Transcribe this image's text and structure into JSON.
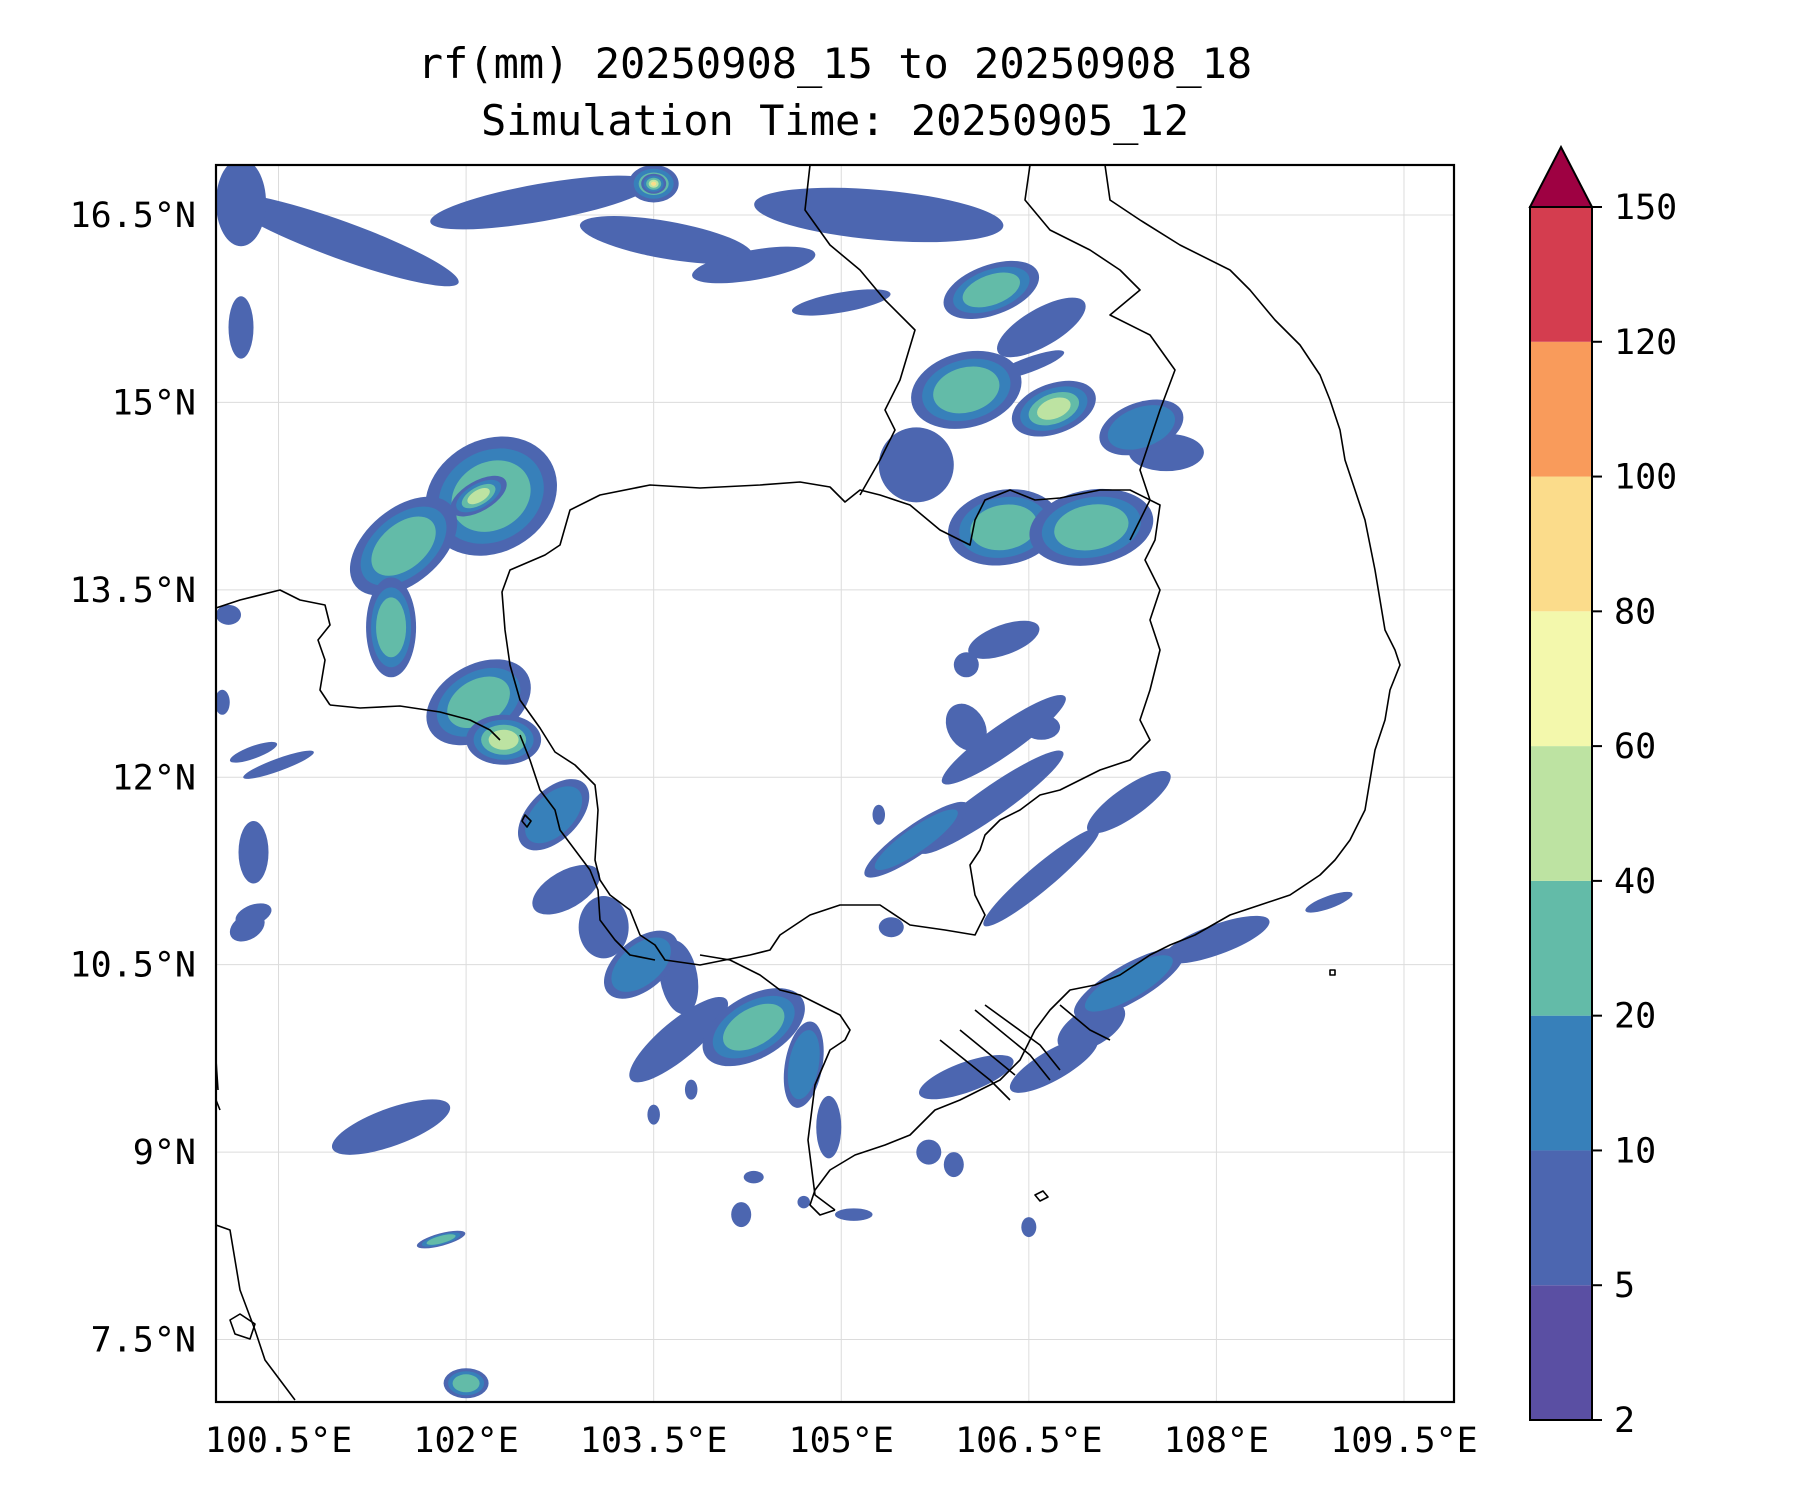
{
  "title": {
    "line1": "rf(mm) 20250908_15 to 20250908_18",
    "line2": "Simulation Time: 20250905_12"
  },
  "map": {
    "lon_range": [
      100.0,
      109.9
    ],
    "lat_range": [
      7.0,
      16.9
    ],
    "lon_ticks": [
      100.5,
      102.0,
      103.5,
      105.0,
      106.5,
      108.0,
      109.5
    ],
    "lat_ticks": [
      7.5,
      9.0,
      10.5,
      12.0,
      13.5,
      15.0,
      16.5
    ],
    "lon_tick_labels": [
      "100.5°E",
      "102°E",
      "103.5°E",
      "105°E",
      "106.5°E",
      "108°E",
      "109.5°E"
    ],
    "lat_tick_labels": [
      "7.5°N",
      "9°N",
      "10.5°N",
      "12°N",
      "13.5°N",
      "15°N",
      "16.5°N"
    ],
    "gridlines": true
  },
  "colorbar": {
    "levels": [
      2,
      5,
      10,
      20,
      40,
      60,
      80,
      100,
      120,
      150
    ],
    "level_labels": [
      "2",
      "5",
      "10",
      "20",
      "40",
      "60",
      "80",
      "100",
      "120",
      "150"
    ],
    "colors": [
      "#5a4fa3",
      "#4c66b0",
      "#3780ba",
      "#63bba8",
      "#bde3a2",
      "#f3f8ac",
      "#fbdc8b",
      "#f99b5b",
      "#d43d4f"
    ],
    "extend_color": "#9e0142",
    "extend": "max"
  },
  "rain_cells": [
    {
      "lon": 102.2,
      "lat": 14.25,
      "rx": 0.55,
      "ry": 0.45,
      "rot": -30,
      "level": 2
    },
    {
      "lon": 101.5,
      "lat": 13.85,
      "rx": 0.5,
      "ry": 0.3,
      "rot": -40,
      "level": 2
    },
    {
      "lon": 101.4,
      "lat": 13.2,
      "rx": 0.2,
      "ry": 0.4,
      "rot": 0,
      "level": 2
    },
    {
      "lon": 102.1,
      "lat": 12.6,
      "rx": 0.45,
      "ry": 0.3,
      "rot": -30,
      "level": 2
    },
    {
      "lon": 102.3,
      "lat": 12.3,
      "rx": 0.3,
      "ry": 0.2,
      "rot": 0,
      "level": 3
    },
    {
      "lon": 102.1,
      "lat": 14.25,
      "rx": 0.25,
      "ry": 0.12,
      "rot": -30,
      "level": 3
    },
    {
      "lon": 102.7,
      "lat": 11.7,
      "rx": 0.35,
      "ry": 0.2,
      "rot": -45,
      "level": 1
    },
    {
      "lon": 103.4,
      "lat": 10.5,
      "rx": 0.35,
      "ry": 0.2,
      "rot": -40,
      "level": 1
    },
    {
      "lon": 104.3,
      "lat": 10.0,
      "rx": 0.45,
      "ry": 0.25,
      "rot": -30,
      "level": 2
    },
    {
      "lon": 104.7,
      "lat": 9.7,
      "rx": 0.15,
      "ry": 0.35,
      "rot": 10,
      "level": 1
    },
    {
      "lon": 106.0,
      "lat": 15.1,
      "rx": 0.45,
      "ry": 0.3,
      "rot": -15,
      "level": 2
    },
    {
      "lon": 106.7,
      "lat": 14.95,
      "rx": 0.35,
      "ry": 0.2,
      "rot": -20,
      "level": 3
    },
    {
      "lon": 106.3,
      "lat": 14.0,
      "rx": 0.45,
      "ry": 0.3,
      "rot": -10,
      "level": 2
    },
    {
      "lon": 107.0,
      "lat": 14.0,
      "rx": 0.5,
      "ry": 0.3,
      "rot": -10,
      "level": 2
    },
    {
      "lon": 107.4,
      "lat": 14.8,
      "rx": 0.35,
      "ry": 0.2,
      "rot": -20,
      "level": 1
    },
    {
      "lon": 106.2,
      "lat": 15.9,
      "rx": 0.4,
      "ry": 0.2,
      "rot": -20,
      "level": 2
    },
    {
      "lon": 103.5,
      "lat": 16.75,
      "rx": 0.2,
      "ry": 0.15,
      "rot": 0,
      "level": 4
    },
    {
      "lon": 103.5,
      "lat": 16.75,
      "rx": 0.1,
      "ry": 0.08,
      "rot": 0,
      "level": 5
    },
    {
      "lon": 102.0,
      "lat": 7.15,
      "rx": 0.18,
      "ry": 0.12,
      "rot": 0,
      "level": 2
    },
    {
      "lon": 101.8,
      "lat": 8.3,
      "rx": 0.2,
      "ry": 0.05,
      "rot": -15,
      "level": 2
    },
    {
      "lon": 105.6,
      "lat": 11.5,
      "rx": 0.5,
      "ry": 0.12,
      "rot": -35,
      "level": 1
    },
    {
      "lon": 107.3,
      "lat": 10.35,
      "rx": 0.5,
      "ry": 0.15,
      "rot": -30,
      "level": 1
    }
  ],
  "light_cells": [
    {
      "lon": 101.0,
      "lat": 16.3,
      "rx": 1.0,
      "ry": 0.15,
      "rot": 20
    },
    {
      "lon": 102.6,
      "lat": 16.6,
      "rx": 0.9,
      "ry": 0.15,
      "rot": -10
    },
    {
      "lon": 103.6,
      "lat": 16.3,
      "rx": 0.7,
      "ry": 0.15,
      "rot": 10
    },
    {
      "lon": 104.3,
      "lat": 16.1,
      "rx": 0.5,
      "ry": 0.12,
      "rot": -10
    },
    {
      "lon": 105.3,
      "lat": 16.5,
      "rx": 1.0,
      "ry": 0.2,
      "rot": 5
    },
    {
      "lon": 100.2,
      "lat": 16.6,
      "rx": 0.2,
      "ry": 0.35,
      "rot": 0
    },
    {
      "lon": 100.2,
      "lat": 15.6,
      "rx": 0.1,
      "ry": 0.25,
      "rot": 0
    },
    {
      "lon": 105.0,
      "lat": 15.8,
      "rx": 0.4,
      "ry": 0.08,
      "rot": -10
    },
    {
      "lon": 106.6,
      "lat": 15.6,
      "rx": 0.4,
      "ry": 0.15,
      "rot": -30
    },
    {
      "lon": 105.6,
      "lat": 14.5,
      "rx": 0.3,
      "ry": 0.3,
      "rot": 0
    },
    {
      "lon": 107.6,
      "lat": 14.6,
      "rx": 0.3,
      "ry": 0.15,
      "rot": 0
    },
    {
      "lon": 106.3,
      "lat": 13.1,
      "rx": 0.3,
      "ry": 0.12,
      "rot": -20
    },
    {
      "lon": 106.3,
      "lat": 12.3,
      "rx": 0.6,
      "ry": 0.12,
      "rot": -35
    },
    {
      "lon": 106.2,
      "lat": 11.8,
      "rx": 0.7,
      "ry": 0.12,
      "rot": -35
    },
    {
      "lon": 106.6,
      "lat": 11.2,
      "rx": 0.6,
      "ry": 0.1,
      "rot": -40
    },
    {
      "lon": 100.5,
      "lat": 12.1,
      "rx": 0.3,
      "ry": 0.05,
      "rot": -20
    },
    {
      "lon": 100.3,
      "lat": 11.4,
      "rx": 0.12,
      "ry": 0.25,
      "rot": 0
    },
    {
      "lon": 100.3,
      "lat": 10.9,
      "rx": 0.15,
      "ry": 0.08,
      "rot": -20
    },
    {
      "lon": 100.25,
      "lat": 10.8,
      "rx": 0.15,
      "ry": 0.1,
      "rot": -30
    },
    {
      "lon": 100.3,
      "lat": 12.2,
      "rx": 0.2,
      "ry": 0.05,
      "rot": -20
    },
    {
      "lon": 100.1,
      "lat": 13.3,
      "rx": 0.1,
      "ry": 0.08,
      "rot": 0
    },
    {
      "lon": 100.05,
      "lat": 12.6,
      "rx": 0.06,
      "ry": 0.1,
      "rot": 0
    },
    {
      "lon": 101.4,
      "lat": 9.2,
      "rx": 0.5,
      "ry": 0.15,
      "rot": -20
    },
    {
      "lon": 102.8,
      "lat": 11.1,
      "rx": 0.3,
      "ry": 0.15,
      "rot": -30
    },
    {
      "lon": 103.1,
      "lat": 10.8,
      "rx": 0.2,
      "ry": 0.25,
      "rot": 0
    },
    {
      "lon": 103.7,
      "lat": 10.4,
      "rx": 0.15,
      "ry": 0.3,
      "rot": -10
    },
    {
      "lon": 103.7,
      "lat": 9.9,
      "rx": 0.5,
      "ry": 0.15,
      "rot": -40
    },
    {
      "lon": 104.9,
      "lat": 9.2,
      "rx": 0.1,
      "ry": 0.25,
      "rot": 0
    },
    {
      "lon": 105.4,
      "lat": 10.8,
      "rx": 0.1,
      "ry": 0.08,
      "rot": 0
    },
    {
      "lon": 105.9,
      "lat": 8.9,
      "rx": 0.08,
      "ry": 0.1,
      "rot": 0
    },
    {
      "lon": 105.7,
      "lat": 9.0,
      "rx": 0.1,
      "ry": 0.1,
      "rot": 0
    },
    {
      "lon": 106.0,
      "lat": 9.6,
      "rx": 0.4,
      "ry": 0.12,
      "rot": -20
    },
    {
      "lon": 106.7,
      "lat": 9.7,
      "rx": 0.4,
      "ry": 0.12,
      "rot": -30
    },
    {
      "lon": 106.5,
      "lat": 8.4,
      "rx": 0.06,
      "ry": 0.08,
      "rot": 0
    },
    {
      "lon": 105.1,
      "lat": 8.5,
      "rx": 0.15,
      "ry": 0.05,
      "rot": 0
    },
    {
      "lon": 104.7,
      "lat": 8.6,
      "rx": 0.05,
      "ry": 0.05,
      "rot": 0
    },
    {
      "lon": 108.0,
      "lat": 10.7,
      "rx": 0.45,
      "ry": 0.12,
      "rot": -20
    },
    {
      "lon": 107.0,
      "lat": 10.0,
      "rx": 0.3,
      "ry": 0.15,
      "rot": -30
    },
    {
      "lon": 108.9,
      "lat": 11.0,
      "rx": 0.2,
      "ry": 0.05,
      "rot": -20
    },
    {
      "lon": 106.0,
      "lat": 12.9,
      "rx": 0.1,
      "ry": 0.1,
      "rot": 0
    },
    {
      "lon": 106.0,
      "lat": 12.4,
      "rx": 0.15,
      "ry": 0.2,
      "rot": -30
    },
    {
      "lon": 106.6,
      "lat": 12.4,
      "rx": 0.15,
      "ry": 0.1,
      "rot": 0
    },
    {
      "lon": 107.3,
      "lat": 11.8,
      "rx": 0.4,
      "ry": 0.12,
      "rot": -35
    },
    {
      "lon": 104.2,
      "lat": 8.5,
      "rx": 0.08,
      "ry": 0.1,
      "rot": 0
    },
    {
      "lon": 104.3,
      "lat": 8.8,
      "rx": 0.08,
      "ry": 0.05,
      "rot": 0
    },
    {
      "lon": 103.5,
      "lat": 9.3,
      "rx": 0.05,
      "ry": 0.08,
      "rot": 0
    },
    {
      "lon": 103.8,
      "lat": 9.5,
      "rx": 0.05,
      "ry": 0.08,
      "rot": 0
    },
    {
      "lon": 105.3,
      "lat": 11.7,
      "rx": 0.05,
      "ry": 0.08,
      "rot": 0
    },
    {
      "lon": 106.0,
      "lat": 15.1,
      "rx": 0.2,
      "ry": 0.08,
      "rot": 0
    },
    {
      "lon": 106.5,
      "lat": 15.3,
      "rx": 0.3,
      "ry": 0.06,
      "rot": -20
    }
  ]
}
